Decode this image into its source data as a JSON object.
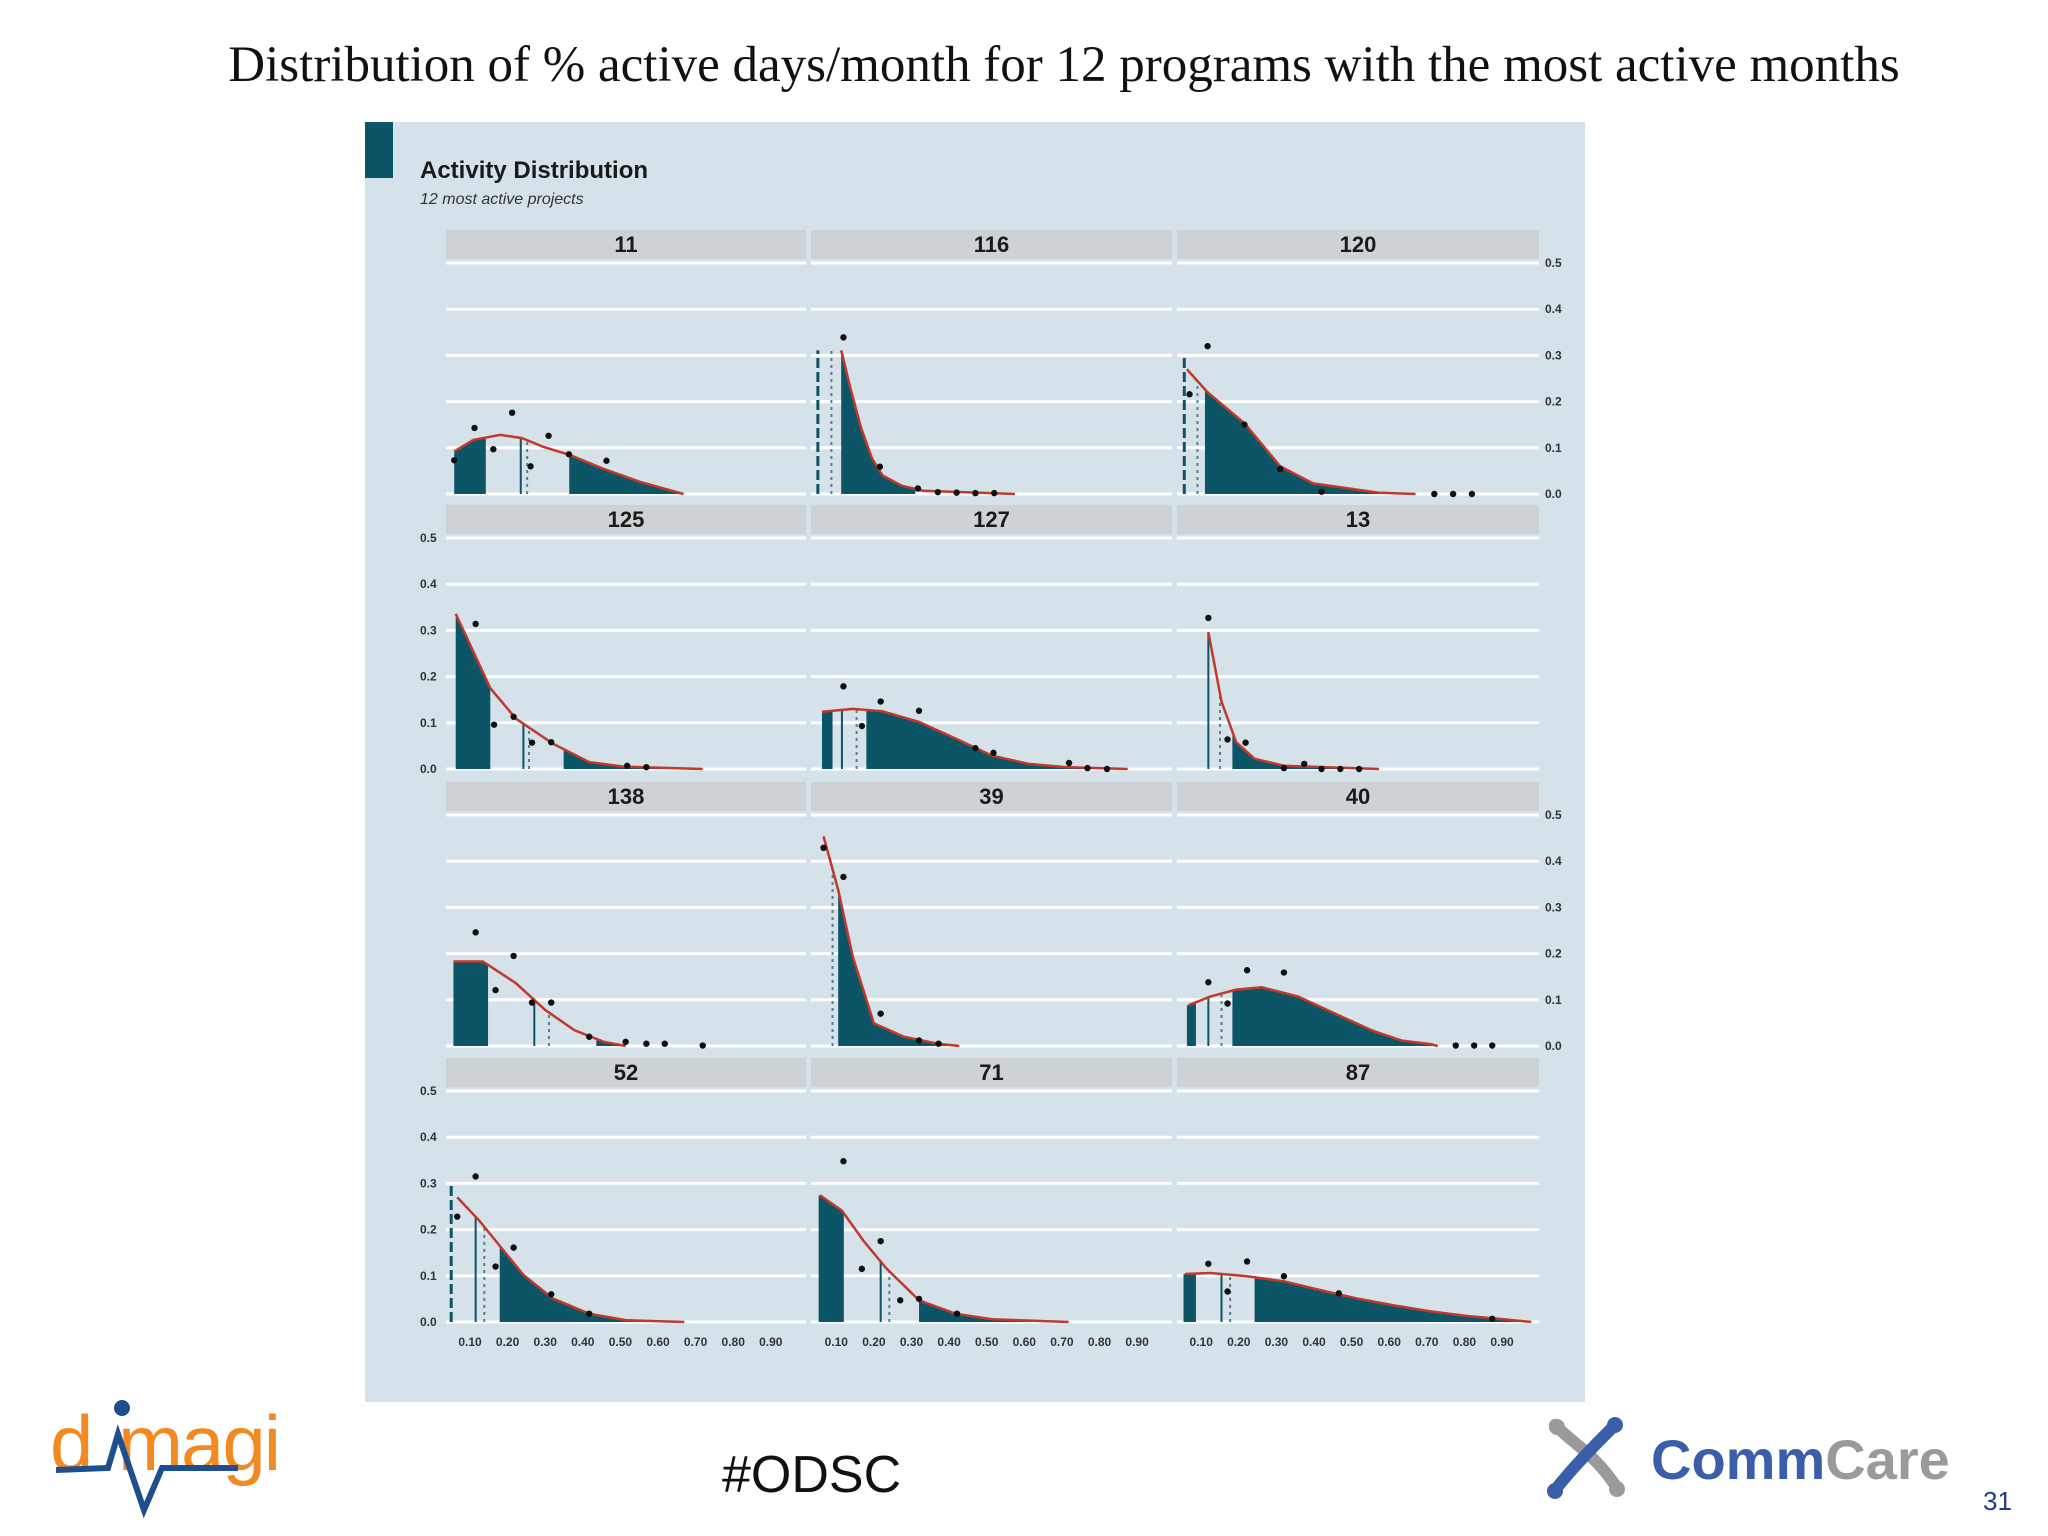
{
  "slide": {
    "title": "Distribution of % active days/month for 12 programs with the most active months",
    "hashtag": "#ODSC",
    "page_number": "31",
    "logo_left_text": "dimagi",
    "logo_right_text_a": "Comm",
    "logo_right_text_b": "Care"
  },
  "chart_data": {
    "type": "area",
    "title": "Activity Distribution",
    "subtitle": "12 most active projects",
    "xlim": [
      0,
      1
    ],
    "ylim": [
      0,
      0.5
    ],
    "grid": true,
    "x_ticks": [
      "0.10",
      "0.20",
      "0.30",
      "0.40",
      "0.50",
      "0.60",
      "0.70",
      "0.80",
      "0.90"
    ],
    "y_ticks": [
      "0.0",
      "0.1",
      "0.2",
      "0.3",
      "0.4",
      "0.5"
    ],
    "colors": {
      "fill": "#0b5566",
      "curve": "#c0392b",
      "points": "#111111",
      "background": "#d6e2ea",
      "strip": "#cdd2d5",
      "accent": "#0b5566"
    },
    "panels": [
      {
        "name": "11",
        "curve": [
          [
            0.058,
            0.092
          ],
          [
            0.109,
            0.117
          ],
          [
            0.18,
            0.128
          ],
          [
            0.238,
            0.121
          ],
          [
            0.295,
            0.102
          ],
          [
            0.367,
            0.084
          ],
          [
            0.453,
            0.055
          ],
          [
            0.553,
            0.026
          ],
          [
            0.668,
            0
          ]
        ],
        "points": [
          [
            0.058,
            0.073
          ],
          [
            0.112,
            0.143
          ],
          [
            0.162,
            0.097
          ],
          [
            0.212,
            0.176
          ],
          [
            0.261,
            0.06
          ],
          [
            0.309,
            0.126
          ],
          [
            0.363,
            0.086
          ],
          [
            0.463,
            0.072
          ]
        ],
        "filled_ranges": [
          [
            0.058,
            0.142
          ],
          [
            0.364,
            0.668
          ]
        ],
        "solid_line": 0.235,
        "dotted_line": 0.252
      },
      {
        "name": "116",
        "curve": [
          [
            0.113,
            0.311
          ],
          [
            0.137,
            0.231
          ],
          [
            0.166,
            0.143
          ],
          [
            0.195,
            0.077
          ],
          [
            0.223,
            0.04
          ],
          [
            0.274,
            0.018
          ],
          [
            0.331,
            0.007
          ],
          [
            0.575,
            0
          ]
        ],
        "points": [
          [
            0.119,
            0.339
          ],
          [
            0.216,
            0.059
          ],
          [
            0.317,
            0.012
          ],
          [
            0.37,
            0.004
          ],
          [
            0.42,
            0.003
          ],
          [
            0.47,
            0.002
          ],
          [
            0.52,
            0.002
          ]
        ],
        "filled_ranges": [
          [
            0.113,
            0.31
          ]
        ],
        "dashed_line": 0.051,
        "dotted_line": 0.087
      },
      {
        "name": "120",
        "curve": [
          [
            0.062,
            0.27
          ],
          [
            0.117,
            0.22
          ],
          [
            0.215,
            0.153
          ],
          [
            0.31,
            0.06
          ],
          [
            0.397,
            0.023
          ],
          [
            0.57,
            0.003
          ],
          [
            0.67,
            0
          ]
        ],
        "points": [
          [
            0.069,
            0.216
          ],
          [
            0.117,
            0.32
          ],
          [
            0.215,
            0.15
          ],
          [
            0.31,
            0.054
          ],
          [
            0.42,
            0.005
          ],
          [
            0.72,
            0
          ],
          [
            0.77,
            0
          ],
          [
            0.82,
            0
          ]
        ],
        "filled_ranges": [
          [
            0.11,
            0.67
          ]
        ],
        "dashed_line": 0.055,
        "dotted_line": 0.09
      },
      {
        "name": "125",
        "curve": [
          [
            0.062,
            0.336
          ],
          [
            0.154,
            0.175
          ],
          [
            0.222,
            0.109
          ],
          [
            0.32,
            0.055
          ],
          [
            0.417,
            0.015
          ],
          [
            0.51,
            0.005
          ],
          [
            0.719,
            0
          ]
        ],
        "points": [
          [
            0.115,
            0.314
          ],
          [
            0.164,
            0.096
          ],
          [
            0.216,
            0.113
          ],
          [
            0.265,
            0.057
          ],
          [
            0.316,
            0.058
          ],
          [
            0.518,
            0.007
          ],
          [
            0.569,
            0.004
          ]
        ],
        "filled_ranges": [
          [
            0.062,
            0.154
          ],
          [
            0.349,
            0.719
          ]
        ],
        "solid_line": 0.242,
        "dotted_line": 0.257
      },
      {
        "name": "127",
        "curve": [
          [
            0.062,
            0.124
          ],
          [
            0.144,
            0.13
          ],
          [
            0.222,
            0.125
          ],
          [
            0.32,
            0.102
          ],
          [
            0.417,
            0.066
          ],
          [
            0.514,
            0.029
          ],
          [
            0.612,
            0.011
          ],
          [
            0.71,
            0.004
          ],
          [
            0.875,
            0
          ]
        ],
        "points": [
          [
            0.119,
            0.179
          ],
          [
            0.168,
            0.093
          ],
          [
            0.218,
            0.146
          ],
          [
            0.32,
            0.126
          ],
          [
            0.47,
            0.045
          ],
          [
            0.518,
            0.035
          ],
          [
            0.719,
            0.013
          ],
          [
            0.768,
            0.002
          ],
          [
            0.82,
            0
          ]
        ],
        "filled_ranges": [
          [
            0.062,
            0.09
          ],
          [
            0.18,
            0.875
          ]
        ],
        "solid_line": 0.115,
        "dotted_line": 0.154
      },
      {
        "name": "13",
        "curve": [
          [
            0.119,
            0.296
          ],
          [
            0.154,
            0.146
          ],
          [
            0.193,
            0.058
          ],
          [
            0.242,
            0.022
          ],
          [
            0.32,
            0.007
          ],
          [
            0.573,
            0
          ]
        ],
        "points": [
          [
            0.119,
            0.327
          ],
          [
            0.17,
            0.064
          ],
          [
            0.218,
            0.057
          ],
          [
            0.32,
            0.002
          ],
          [
            0.374,
            0.011
          ],
          [
            0.42,
            0
          ],
          [
            0.47,
            0
          ],
          [
            0.52,
            0
          ]
        ],
        "filled_ranges": [
          [
            0.183,
            0.573
          ]
        ],
        "solid_line": 0.119,
        "dotted_line": 0.15
      },
      {
        "name": "138",
        "curve": [
          [
            0.056,
            0.183
          ],
          [
            0.134,
            0.183
          ],
          [
            0.222,
            0.136
          ],
          [
            0.3,
            0.078
          ],
          [
            0.378,
            0.034
          ],
          [
            0.456,
            0.009
          ],
          [
            0.514,
            0
          ]
        ],
        "points": [
          [
            0.115,
            0.246
          ],
          [
            0.168,
            0.121
          ],
          [
            0.216,
            0.195
          ],
          [
            0.265,
            0.094
          ],
          [
            0.316,
            0.094
          ],
          [
            0.417,
            0.02
          ],
          [
            0.514,
            0.009
          ],
          [
            0.569,
            0.005
          ],
          [
            0.618,
            0.005
          ],
          [
            0.719,
            0.001
          ]
        ],
        "filled_ranges": [
          [
            0.056,
            0.148
          ],
          [
            0.436,
            0.514
          ]
        ],
        "solid_line": 0.271,
        "dotted_line": 0.31
      },
      {
        "name": "39",
        "curve": [
          [
            0.066,
            0.454
          ],
          [
            0.105,
            0.338
          ],
          [
            0.144,
            0.193
          ],
          [
            0.2,
            0.049
          ],
          [
            0.28,
            0.02
          ],
          [
            0.37,
            0.005
          ],
          [
            0.427,
            0
          ]
        ],
        "points": [
          [
            0.066,
            0.429
          ],
          [
            0.119,
            0.366
          ],
          [
            0.218,
            0.07
          ],
          [
            0.32,
            0.012
          ],
          [
            0.372,
            0.005
          ]
        ],
        "filled_ranges": [
          [
            0.105,
            0.427
          ]
        ],
        "dotted_line": 0.09
      },
      {
        "name": "40",
        "curve": [
          [
            0.066,
            0.088
          ],
          [
            0.124,
            0.107
          ],
          [
            0.193,
            0.122
          ],
          [
            0.261,
            0.127
          ],
          [
            0.358,
            0.107
          ],
          [
            0.456,
            0.07
          ],
          [
            0.553,
            0.034
          ],
          [
            0.632,
            0.012
          ],
          [
            0.71,
            0.004
          ],
          [
            0.729,
            0
          ]
        ],
        "points": [
          [
            0.119,
            0.138
          ],
          [
            0.17,
            0.092
          ],
          [
            0.222,
            0.164
          ],
          [
            0.32,
            0.159
          ],
          [
            0.777,
            0.001
          ],
          [
            0.826,
            0.001
          ],
          [
            0.874,
            0.001
          ]
        ],
        "filled_ranges": [
          [
            0.062,
            0.086
          ],
          [
            0.183,
            0.729
          ]
        ],
        "solid_line": 0.119,
        "dotted_line": 0.154
      },
      {
        "name": "52",
        "curve": [
          [
            0.066,
            0.27
          ],
          [
            0.125,
            0.219
          ],
          [
            0.183,
            0.161
          ],
          [
            0.242,
            0.102
          ],
          [
            0.32,
            0.051
          ],
          [
            0.417,
            0.018
          ],
          [
            0.514,
            0.004
          ],
          [
            0.67,
            0
          ]
        ],
        "points": [
          [
            0.066,
            0.228
          ],
          [
            0.115,
            0.315
          ],
          [
            0.168,
            0.12
          ],
          [
            0.216,
            0.161
          ],
          [
            0.316,
            0.06
          ],
          [
            0.417,
            0.018
          ]
        ],
        "filled_ranges": [
          [
            0.179,
            0.67
          ]
        ],
        "dashed_line": 0.05,
        "solid_line": 0.115,
        "dotted_line": 0.138
      },
      {
        "name": "71",
        "curve": [
          [
            0.057,
            0.274
          ],
          [
            0.115,
            0.241
          ],
          [
            0.173,
            0.175
          ],
          [
            0.232,
            0.117
          ],
          [
            0.32,
            0.047
          ],
          [
            0.417,
            0.018
          ],
          [
            0.514,
            0.006
          ],
          [
            0.718,
            0
          ]
        ],
        "points": [
          [
            0.119,
            0.348
          ],
          [
            0.168,
            0.115
          ],
          [
            0.218,
            0.175
          ],
          [
            0.27,
            0.047
          ],
          [
            0.32,
            0.05
          ],
          [
            0.421,
            0.018
          ]
        ],
        "filled_ranges": [
          [
            0.053,
            0.12
          ],
          [
            0.32,
            0.718
          ]
        ],
        "solid_line": 0.218,
        "dotted_line": 0.241
      },
      {
        "name": "87",
        "curve": [
          [
            0.057,
            0.104
          ],
          [
            0.125,
            0.106
          ],
          [
            0.222,
            0.099
          ],
          [
            0.32,
            0.088
          ],
          [
            0.417,
            0.069
          ],
          [
            0.514,
            0.051
          ],
          [
            0.612,
            0.036
          ],
          [
            0.71,
            0.023
          ],
          [
            0.807,
            0.013
          ],
          [
            0.904,
            0.006
          ],
          [
            0.978,
            0
          ]
        ],
        "points": [
          [
            0.119,
            0.126
          ],
          [
            0.17,
            0.066
          ],
          [
            0.222,
            0.131
          ],
          [
            0.32,
            0.099
          ],
          [
            0.466,
            0.062
          ],
          [
            0.874,
            0.007
          ]
        ],
        "filled_ranges": [
          [
            0.053,
            0.086
          ],
          [
            0.242,
            0.978
          ]
        ],
        "solid_line": 0.154,
        "dotted_line": 0.177
      }
    ]
  }
}
